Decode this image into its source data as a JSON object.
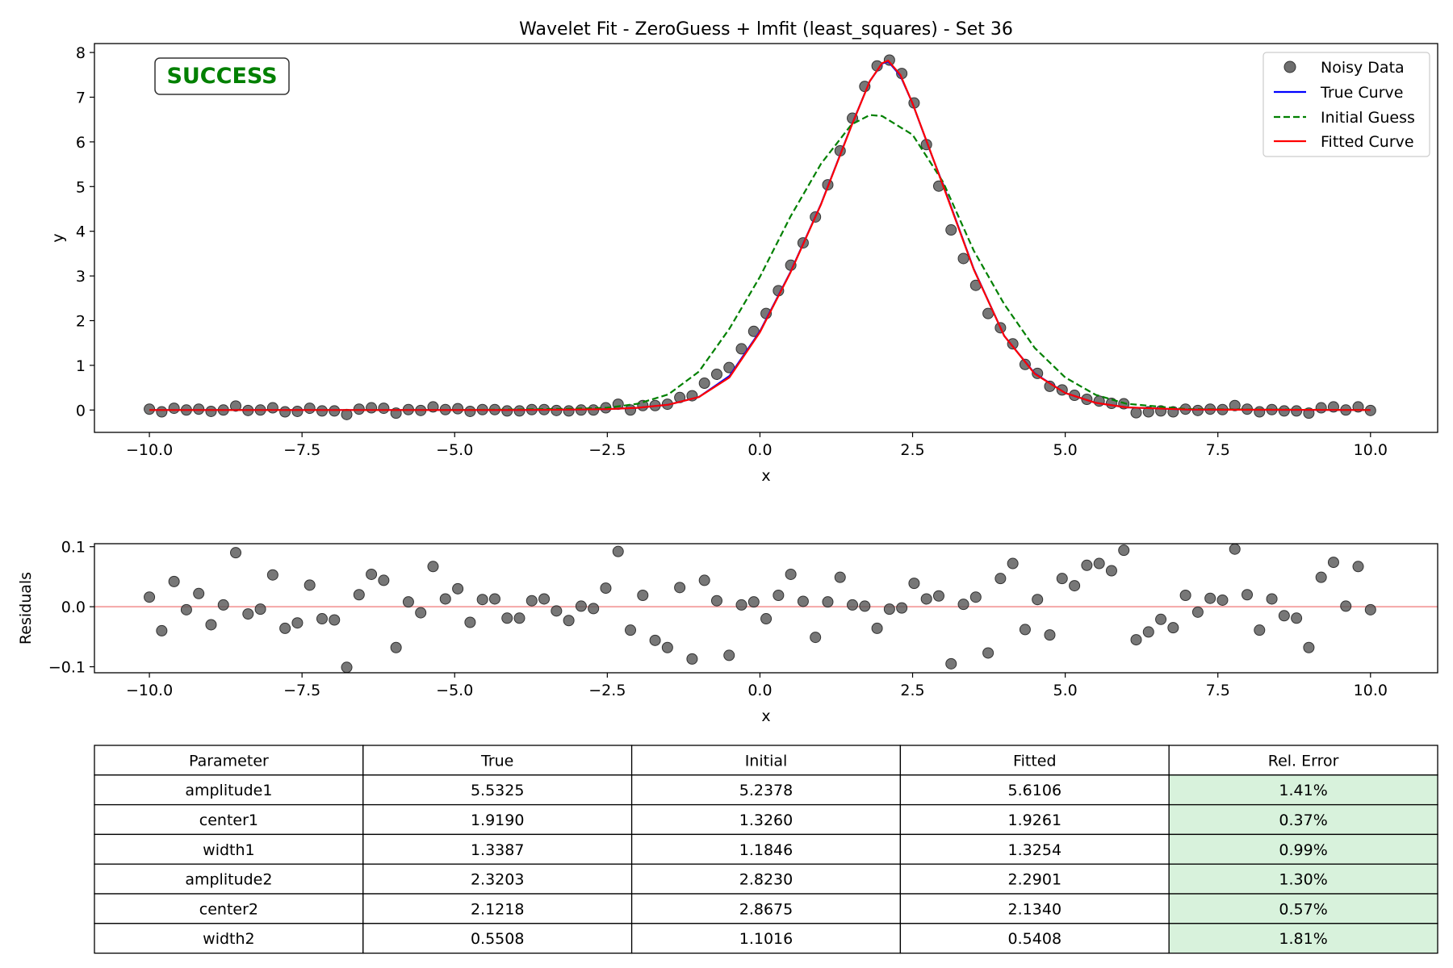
{
  "figure": {
    "title": "Wavelet Fit - ZeroGuess + lmfit (least_squares) - Set 36",
    "badge": "SUCCESS"
  },
  "colors": {
    "data_points": "#555555",
    "true_curve": "#0000ff",
    "initial_guess": "#008000",
    "fitted_curve": "#ff0000",
    "residual_zero_line": "#f4a6a6",
    "good_error_cell": "#d8f2dc"
  },
  "chart_data": [
    {
      "type": "scatter",
      "xlabel": "x",
      "ylabel": "y",
      "xlim": [
        -10.9,
        11.1
      ],
      "ylim": [
        -0.5,
        8.2
      ],
      "xticks": [
        -10,
        -7.5,
        -5,
        -2.5,
        0,
        2.5,
        5,
        7.5,
        10
      ],
      "xtick_labels": [
        "−10.0",
        "−7.5",
        "−5.0",
        "−2.5",
        "0.0",
        "2.5",
        "5.0",
        "7.5",
        "10.0"
      ],
      "yticks": [
        0,
        1,
        2,
        3,
        4,
        5,
        6,
        7,
        8
      ],
      "ytick_labels": [
        "0",
        "1",
        "2",
        "3",
        "4",
        "5",
        "6",
        "7",
        "8"
      ],
      "grid": false,
      "legend_position": "top-right",
      "series": [
        {
          "name": "Noisy Data",
          "kind": "markers",
          "color": "#555555",
          "x": [
            -10.0,
            -9.798,
            -9.596,
            -9.394,
            -9.192,
            -8.99,
            -8.788,
            -8.586,
            -8.384,
            -8.182,
            -7.98,
            -7.778,
            -7.576,
            -7.374,
            -7.172,
            -6.97,
            -6.768,
            -6.566,
            -6.364,
            -6.162,
            -5.96,
            -5.758,
            -5.556,
            -5.354,
            -5.152,
            -4.949,
            -4.747,
            -4.545,
            -4.343,
            -4.141,
            -3.939,
            -3.737,
            -3.535,
            -3.333,
            -3.131,
            -2.929,
            -2.727,
            -2.525,
            -2.323,
            -2.121,
            -1.919,
            -1.717,
            -1.515,
            -1.313,
            -1.111,
            -0.909,
            -0.707,
            -0.505,
            -0.303,
            -0.101,
            0.101,
            0.303,
            0.505,
            0.707,
            0.909,
            1.111,
            1.313,
            1.515,
            1.717,
            1.919,
            2.121,
            2.323,
            2.525,
            2.727,
            2.929,
            3.131,
            3.333,
            3.535,
            3.737,
            3.939,
            4.141,
            4.343,
            4.545,
            4.747,
            4.949,
            5.152,
            5.354,
            5.556,
            5.758,
            5.96,
            6.162,
            6.364,
            6.566,
            6.768,
            6.97,
            7.172,
            7.374,
            7.576,
            7.778,
            7.98,
            8.182,
            8.384,
            8.586,
            8.788,
            8.99,
            9.192,
            9.394,
            9.596,
            9.798,
            10.0
          ],
          "y": [
            0.02,
            -0.04,
            0.04,
            0.0,
            0.02,
            -0.03,
            0.0,
            0.09,
            -0.01,
            0.0,
            0.05,
            -0.04,
            -0.03,
            0.04,
            -0.02,
            -0.02,
            -0.1,
            0.02,
            0.05,
            0.04,
            -0.07,
            0.01,
            -0.01,
            0.07,
            0.01,
            0.03,
            -0.03,
            0.01,
            0.01,
            -0.02,
            -0.02,
            0.01,
            0.01,
            -0.01,
            -0.02,
            0.0,
            0.0,
            0.05,
            0.13,
            0.0,
            0.1,
            0.1,
            0.13,
            0.28,
            0.32,
            0.6,
            0.8,
            0.95,
            1.37,
            1.76,
            2.16,
            2.67,
            3.24,
            3.74,
            4.32,
            5.04,
            5.8,
            6.53,
            7.24,
            7.7,
            7.83,
            7.53,
            6.87,
            5.94,
            5.01,
            4.03,
            3.39,
            2.79,
            2.16,
            1.84,
            1.48,
            1.02,
            0.82,
            0.53,
            0.45,
            0.33,
            0.24,
            0.2,
            0.15,
            0.14,
            -0.06,
            -0.04,
            -0.02,
            -0.04,
            0.02,
            -0.01,
            0.02,
            0.01,
            0.1,
            0.02,
            -0.04,
            0.01,
            -0.02,
            -0.02,
            -0.07,
            0.05,
            0.07,
            0.0,
            0.07,
            -0.01
          ]
        },
        {
          "name": "True Curve",
          "kind": "line",
          "color": "#0000ff",
          "x": [
            -10,
            -6,
            -4,
            -3,
            -2.5,
            -2,
            -1.5,
            -1,
            -0.5,
            0,
            0.5,
            1,
            1.5,
            1.8,
            2,
            2.1,
            2.3,
            2.5,
            2.8,
            3,
            3.5,
            4,
            4.5,
            5,
            5.5,
            6,
            7,
            10
          ],
          "y": [
            0,
            0,
            0,
            0.01,
            0.02,
            0.05,
            0.12,
            0.29,
            0.76,
            1.76,
            3.09,
            4.61,
            6.37,
            7.36,
            7.75,
            7.8,
            7.48,
            6.86,
            5.75,
            5.04,
            3.16,
            1.66,
            0.82,
            0.38,
            0.16,
            0.06,
            0.01,
            0
          ]
        },
        {
          "name": "Initial Guess",
          "kind": "line",
          "color": "#008000",
          "dashed": true,
          "x": [
            -10,
            -5,
            -4,
            -3,
            -2.5,
            -2,
            -1.5,
            -1,
            -0.5,
            0,
            0.5,
            1,
            1.5,
            1.8,
            2,
            2.5,
            3,
            3.5,
            4,
            4.5,
            5,
            5.5,
            6,
            7,
            10
          ],
          "y": [
            0,
            0,
            0.01,
            0.03,
            0.05,
            0.14,
            0.35,
            0.86,
            1.82,
            2.98,
            4.33,
            5.51,
            6.39,
            6.6,
            6.58,
            6.16,
            5.1,
            3.57,
            2.37,
            1.39,
            0.73,
            0.34,
            0.14,
            0.02,
            0
          ]
        },
        {
          "name": "Fitted Curve",
          "kind": "line",
          "color": "#ff0000",
          "x": [
            -10,
            -6,
            -4,
            -3,
            -2.5,
            -2,
            -1.5,
            -1,
            -0.5,
            0,
            0.5,
            1,
            1.5,
            1.8,
            2,
            2.1,
            2.3,
            2.5,
            2.8,
            3,
            3.5,
            4,
            4.5,
            5,
            5.5,
            6,
            7,
            10
          ],
          "y": [
            0,
            0,
            0,
            0.01,
            0.02,
            0.05,
            0.12,
            0.29,
            0.73,
            1.74,
            3.08,
            4.6,
            6.36,
            7.36,
            7.76,
            7.82,
            7.5,
            6.86,
            5.76,
            5.02,
            3.15,
            1.66,
            0.81,
            0.38,
            0.16,
            0.06,
            0.01,
            0
          ]
        }
      ]
    },
    {
      "type": "scatter",
      "xlabel": "x",
      "ylabel": "Residuals",
      "xlim": [
        -10.9,
        11.1
      ],
      "ylim": [
        -0.11,
        0.105
      ],
      "xticks": [
        -10,
        -7.5,
        -5,
        -2.5,
        0,
        2.5,
        5,
        7.5,
        10
      ],
      "xtick_labels": [
        "−10.0",
        "−7.5",
        "−5.0",
        "−2.5",
        "0.0",
        "2.5",
        "5.0",
        "7.5",
        "10.0"
      ],
      "yticks": [
        -0.1,
        0.0,
        0.1
      ],
      "ytick_labels": [
        "−0.1",
        "0.0",
        "0.1"
      ],
      "reference_line_y": 0,
      "series": [
        {
          "kind": "markers",
          "color": "#555555",
          "x": [
            -10.0,
            -9.798,
            -9.596,
            -9.394,
            -9.192,
            -8.99,
            -8.788,
            -8.586,
            -8.384,
            -8.182,
            -7.98,
            -7.778,
            -7.576,
            -7.374,
            -7.172,
            -6.97,
            -6.768,
            -6.566,
            -6.364,
            -6.162,
            -5.96,
            -5.758,
            -5.556,
            -5.354,
            -5.152,
            -4.949,
            -4.747,
            -4.545,
            -4.343,
            -4.141,
            -3.939,
            -3.737,
            -3.535,
            -3.333,
            -3.131,
            -2.929,
            -2.727,
            -2.525,
            -2.323,
            -2.121,
            -1.919,
            -1.717,
            -1.515,
            -1.313,
            -1.111,
            -0.909,
            -0.707,
            -0.505,
            -0.303,
            -0.101,
            0.101,
            0.303,
            0.505,
            0.707,
            0.909,
            1.111,
            1.313,
            1.515,
            1.717,
            1.919,
            2.121,
            2.323,
            2.525,
            2.727,
            2.929,
            3.131,
            3.333,
            3.535,
            3.737,
            3.939,
            4.141,
            4.343,
            4.545,
            4.747,
            4.949,
            5.152,
            5.354,
            5.556,
            5.758,
            5.96,
            6.162,
            6.364,
            6.566,
            6.768,
            6.97,
            7.172,
            7.374,
            7.576,
            7.778,
            7.98,
            8.182,
            8.384,
            8.586,
            8.788,
            8.99,
            9.192,
            9.394,
            9.596,
            9.798,
            10.0
          ],
          "y": [
            0.016,
            -0.04,
            0.042,
            -0.005,
            0.022,
            -0.03,
            0.003,
            0.09,
            -0.012,
            -0.004,
            0.053,
            -0.036,
            -0.027,
            0.036,
            -0.02,
            -0.022,
            -0.101,
            0.02,
            0.054,
            0.044,
            -0.068,
            0.008,
            -0.01,
            0.067,
            0.013,
            0.03,
            -0.026,
            0.012,
            0.013,
            -0.019,
            -0.019,
            0.01,
            0.013,
            -0.007,
            -0.023,
            0.001,
            -0.003,
            0.031,
            0.092,
            -0.039,
            0.019,
            -0.056,
            -0.068,
            0.032,
            -0.087,
            0.044,
            0.01,
            -0.081,
            0.003,
            0.008,
            -0.02,
            0.019,
            0.054,
            0.009,
            -0.051,
            0.008,
            0.049,
            0.003,
            0.001,
            -0.036,
            -0.004,
            -0.002,
            0.039,
            0.013,
            0.018,
            -0.095,
            0.004,
            0.016,
            -0.077,
            0.047,
            0.072,
            -0.038,
            0.012,
            -0.047,
            0.047,
            0.035,
            0.069,
            0.072,
            0.06,
            0.094,
            -0.055,
            -0.042,
            -0.021,
            -0.035,
            0.019,
            -0.009,
            0.014,
            0.011,
            0.096,
            0.02,
            -0.039,
            0.013,
            -0.015,
            -0.019,
            -0.068,
            0.049,
            0.074,
            0.001,
            0.067,
            -0.005
          ]
        }
      ]
    },
    {
      "type": "table",
      "columns": [
        "Parameter",
        "True",
        "Initial",
        "Fitted",
        "Rel. Error"
      ],
      "rows": [
        [
          "amplitude1",
          "5.5325",
          "5.2378",
          "5.6106",
          "1.41%"
        ],
        [
          "center1",
          "1.9190",
          "1.3260",
          "1.9261",
          "0.37%"
        ],
        [
          "width1",
          "1.3387",
          "1.1846",
          "1.3254",
          "0.99%"
        ],
        [
          "amplitude2",
          "2.3203",
          "2.8230",
          "2.2901",
          "1.30%"
        ],
        [
          "center2",
          "2.1218",
          "2.8675",
          "2.1340",
          "0.57%"
        ],
        [
          "width2",
          "0.5508",
          "1.1016",
          "0.5408",
          "1.81%"
        ]
      ],
      "highlighted_column": "Rel. Error"
    }
  ]
}
